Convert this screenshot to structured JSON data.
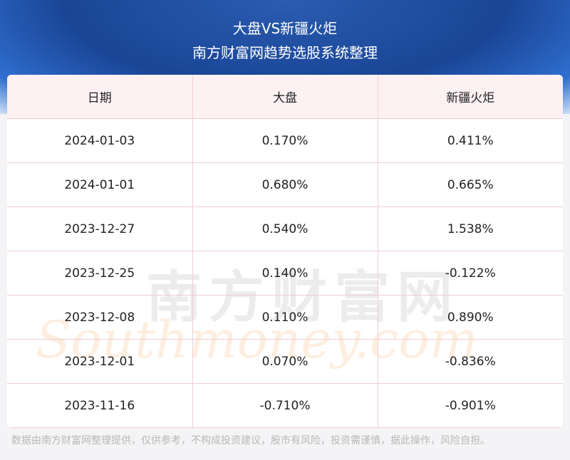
{
  "header": {
    "title": "大盘VS新疆火炬",
    "subtitle": "南方财富网趋势选股系统整理"
  },
  "table": {
    "columns": [
      "日期",
      "大盘",
      "新疆火炬"
    ],
    "rows": [
      [
        "2024-01-03",
        "0.170%",
        "0.411%"
      ],
      [
        "2024-01-01",
        "0.680%",
        "0.665%"
      ],
      [
        "2023-12-27",
        "0.540%",
        "1.538%"
      ],
      [
        "2023-12-25",
        "0.140%",
        "-0.122%"
      ],
      [
        "2023-12-08",
        "0.110%",
        "0.890%"
      ],
      [
        "2023-12-01",
        "0.070%",
        "-0.836%"
      ],
      [
        "2023-11-16",
        "-0.710%",
        "-0.901%"
      ]
    ]
  },
  "watermark": {
    "cn": "南方财富网",
    "en": "Southmoney.com"
  },
  "footer": "数据由南方财富网整理提供，仅供参考，不构成投资建议，股市有风险，投资需谨慎，据此操作，风险自担。"
}
